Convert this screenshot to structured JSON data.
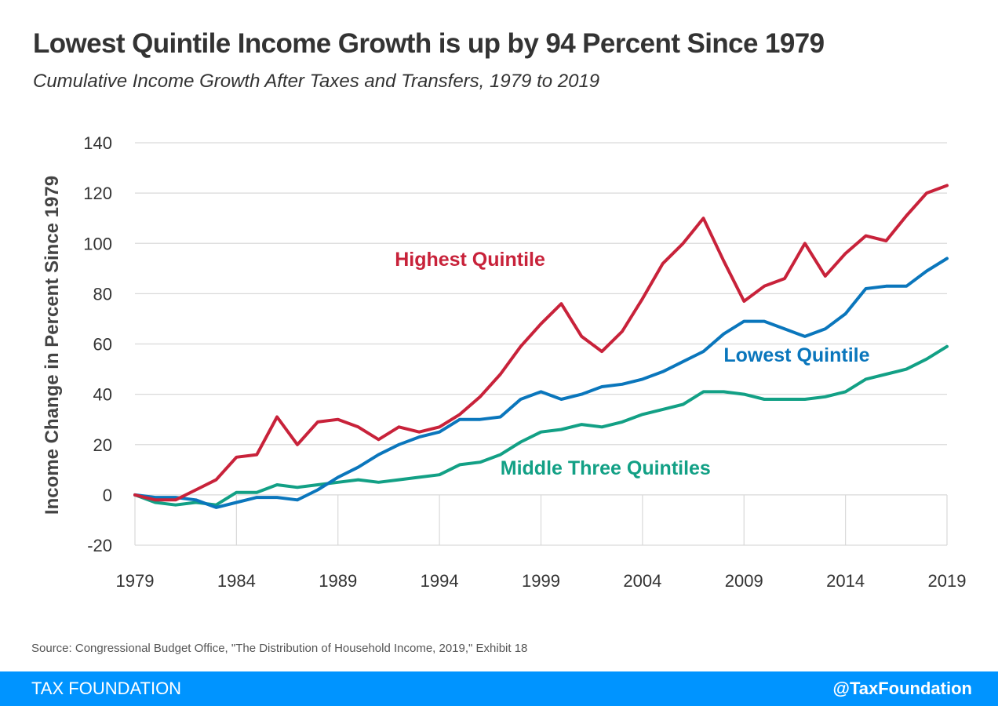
{
  "header": {
    "title": "Lowest Quintile Income Growth is up by 94 Percent Since 1979",
    "subtitle": "Cumulative Income Growth After Taxes and Transfers, 1979 to 2019"
  },
  "source": "Source: Congressional Budget Office, \"The Distribution of Household Income, 2019,\" Exhibit 18",
  "footer": {
    "brand": "TAX FOUNDATION",
    "handle": "@TaxFoundation",
    "color": "#0094ff"
  },
  "chart_data": {
    "type": "line",
    "title": "Lowest Quintile Income Growth is up by 94 Percent Since 1979",
    "subtitle": "Cumulative Income Growth After Taxes and Transfers, 1979 to 2019",
    "xlabel": "",
    "ylabel": "Income Change in Percent Since 1979",
    "xlim": [
      1979,
      2019
    ],
    "ylim": [
      -20,
      140
    ],
    "xticks": [
      1979,
      1984,
      1989,
      1994,
      1999,
      2004,
      2009,
      2014,
      2019
    ],
    "yticks": [
      -20,
      0,
      20,
      40,
      60,
      80,
      100,
      120,
      140
    ],
    "grid": "horizontal",
    "legend": "inline labels",
    "x": [
      1979,
      1980,
      1981,
      1982,
      1983,
      1984,
      1985,
      1986,
      1987,
      1988,
      1989,
      1990,
      1991,
      1992,
      1993,
      1994,
      1995,
      1996,
      1997,
      1998,
      1999,
      2000,
      2001,
      2002,
      2003,
      2004,
      2005,
      2006,
      2007,
      2008,
      2009,
      2010,
      2011,
      2012,
      2013,
      2014,
      2015,
      2016,
      2017,
      2018,
      2019
    ],
    "series": [
      {
        "name": "Highest Quintile",
        "color": "#c8223a",
        "values": [
          0,
          -2,
          -2,
          2,
          6,
          15,
          16,
          31,
          20,
          29,
          30,
          27,
          22,
          27,
          25,
          27,
          32,
          39,
          48,
          59,
          68,
          76,
          63,
          57,
          65,
          78,
          92,
          100,
          110,
          93,
          77,
          83,
          86,
          100,
          87,
          96,
          103,
          101,
          111,
          120,
          123
        ]
      },
      {
        "name": "Lowest Quintile",
        "color": "#0a76bc",
        "values": [
          0,
          -1,
          -1,
          -2,
          -5,
          -3,
          -1,
          -1,
          -2,
          2,
          7,
          11,
          16,
          20,
          23,
          25,
          30,
          30,
          31,
          38,
          41,
          38,
          40,
          43,
          44,
          46,
          49,
          53,
          57,
          64,
          69,
          69,
          66,
          63,
          66,
          72,
          82,
          83,
          83,
          89,
          94
        ]
      },
      {
        "name": "Middle Three Quintiles",
        "color": "#12a085",
        "values": [
          0,
          -3,
          -4,
          -3,
          -4,
          1,
          1,
          4,
          3,
          4,
          5,
          6,
          5,
          6,
          7,
          8,
          12,
          13,
          16,
          21,
          25,
          26,
          28,
          27,
          29,
          32,
          34,
          36,
          41,
          41,
          40,
          38,
          38,
          38,
          39,
          41,
          46,
          48,
          50,
          54,
          59
        ]
      }
    ]
  }
}
